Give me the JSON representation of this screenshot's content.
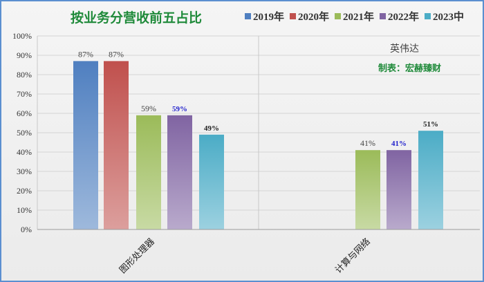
{
  "chart_data": {
    "type": "bar",
    "title": "按业务分营收前五占比",
    "categories": [
      "图形处理器",
      "计算与网络"
    ],
    "series": [
      {
        "name": "2019年",
        "color": "#4f7fc0",
        "values": [
          87,
          null
        ],
        "labels": [
          "87%",
          ""
        ]
      },
      {
        "name": "2020年",
        "color": "#c0504d",
        "values": [
          87,
          null
        ],
        "labels": [
          "87%",
          ""
        ]
      },
      {
        "name": "2021年",
        "color": "#9bbb59",
        "values": [
          59,
          41
        ],
        "labels": [
          "59%",
          "41%"
        ]
      },
      {
        "name": "2022年",
        "color": "#8064a2",
        "values": [
          59,
          41
        ],
        "labels": [
          "59%",
          "41%"
        ]
      },
      {
        "name": "2023中",
        "color": "#4bacc6",
        "values": [
          49,
          51
        ],
        "labels": [
          "49%",
          "51%"
        ]
      }
    ],
    "yticks": [
      "0%",
      "10%",
      "20%",
      "30%",
      "40%",
      "50%",
      "60%",
      "70%",
      "80%",
      "90%",
      "100%"
    ],
    "ylim": [
      0,
      100
    ],
    "grid": true,
    "legend_position": "top-right",
    "annotations": {
      "company": "英伟达",
      "credit": "制表：宏赫臻财"
    }
  },
  "colors": {
    "title": "#1f8a3a",
    "credit": "#1f8a3a",
    "highlight_label": "#1f1fcc",
    "frame": "#5b8fd0"
  }
}
